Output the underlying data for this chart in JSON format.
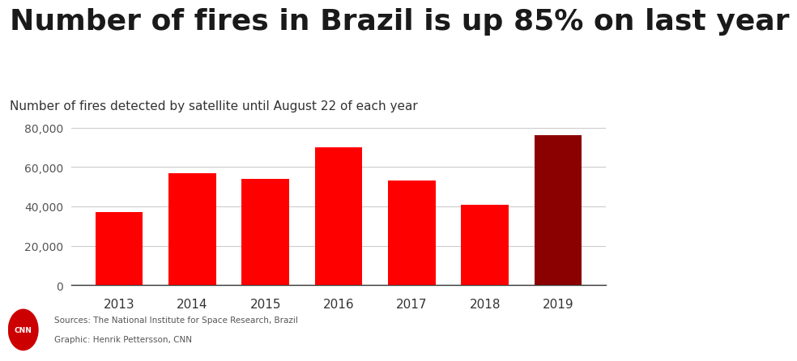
{
  "title": "Number of fires in Brazil is up 85% on last year",
  "subtitle": "Number of fires detected by satellite until August 22 of each year",
  "years": [
    "2013",
    "2014",
    "2015",
    "2016",
    "2017",
    "2018",
    "2019"
  ],
  "values": [
    37000,
    57000,
    54000,
    70000,
    53000,
    41000,
    76000
  ],
  "bar_colors": [
    "#ff0000",
    "#ff0000",
    "#ff0000",
    "#ff0000",
    "#ff0000",
    "#ff0000",
    "#8b0000"
  ],
  "ylim": [
    0,
    85000
  ],
  "yticks": [
    0,
    20000,
    40000,
    60000,
    80000
  ],
  "ytick_labels": [
    "0",
    "20,000",
    "40,000",
    "60,000",
    "80,000"
  ],
  "background_color": "#ffffff",
  "source_line1": "Sources: The National Institute for Space Research, Brazil",
  "source_line2": "Graphic: Henrik Pettersson, CNN",
  "cnn_logo_color": "#cc0000",
  "title_fontsize": 26,
  "subtitle_fontsize": 11,
  "axis_fontsize": 10,
  "grid_color": "#cccccc",
  "title_color": "#1a1a1a",
  "subtitle_color": "#333333",
  "tick_color": "#555555",
  "source_color": "#555555"
}
